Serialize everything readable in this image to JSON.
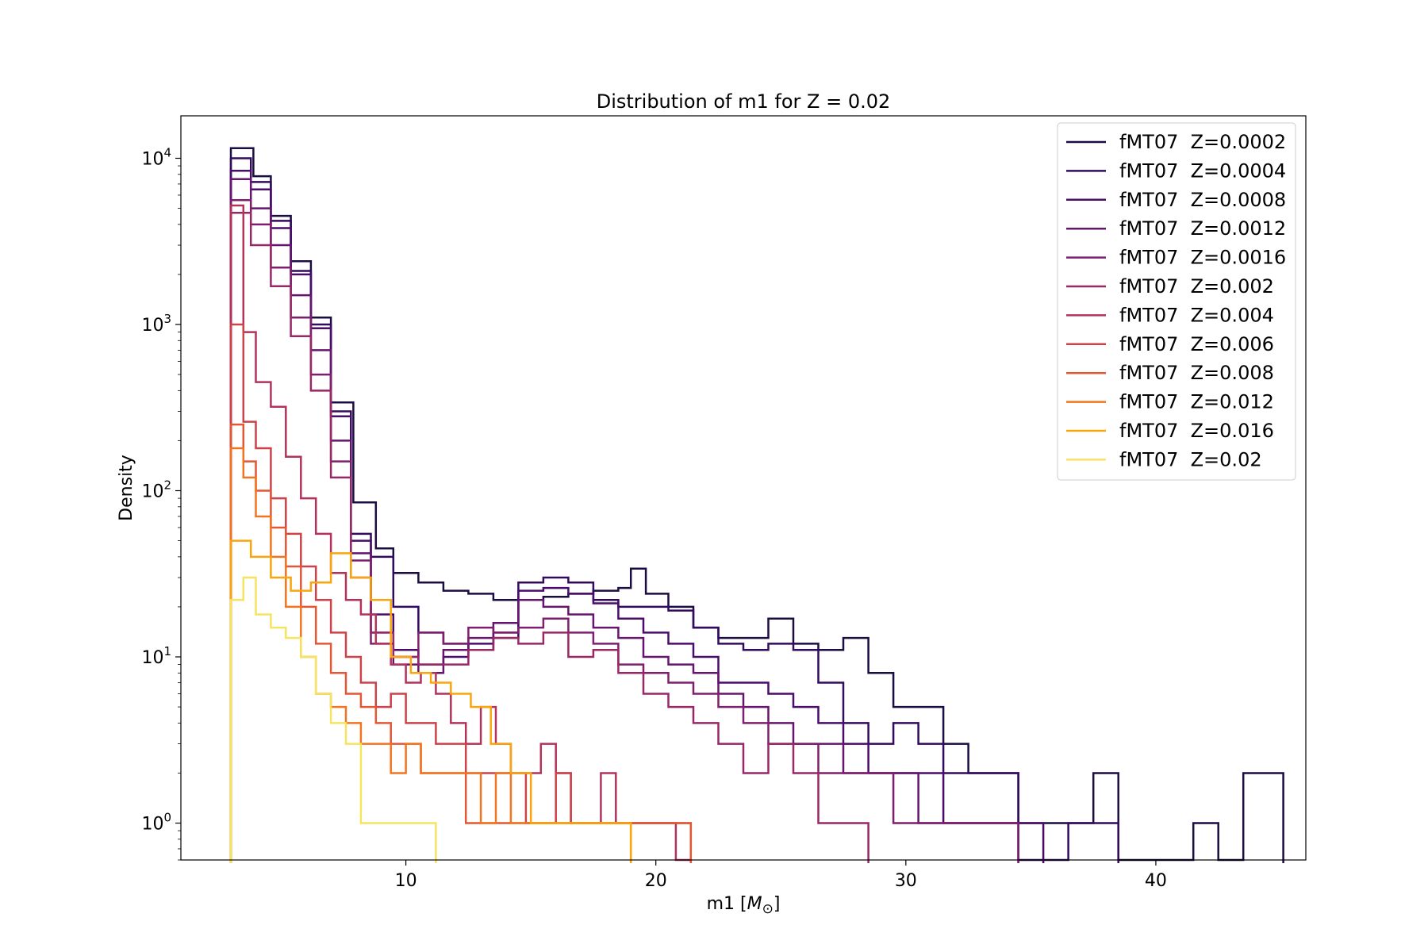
{
  "chart_data": {
    "type": "histogram-step",
    "title": "Distribution of m1 for Z = 0.02",
    "xlabel": "m1 [M⊙]",
    "ylabel": "Density",
    "x_range": [
      1,
      46
    ],
    "y_range": [
      0.6,
      18000
    ],
    "y_scale": "log",
    "x_ticks": [
      10,
      20,
      30,
      40
    ],
    "x_tick_labels": [
      "10",
      "20",
      "30",
      "40"
    ],
    "y_ticks": [
      1,
      10,
      100,
      1000,
      10000
    ],
    "y_tick_labels": [
      {
        "base": "10",
        "exp": "0"
      },
      {
        "base": "10",
        "exp": "1"
      },
      {
        "base": "10",
        "exp": "2"
      },
      {
        "base": "10",
        "exp": "3"
      },
      {
        "base": "10",
        "exp": "4"
      }
    ],
    "grid": false,
    "legend_position": "top-right",
    "series": [
      {
        "name": "fMT07  Z=0.0002",
        "color": "#1b0c41",
        "x": [
          3,
          3.9,
          4.6,
          5.4,
          6.2,
          7,
          7.9,
          8.8,
          9.5,
          10.5,
          11.5,
          12.5,
          13.5,
          14.5,
          15.5,
          16.5,
          17.5,
          18.5,
          19,
          19.6,
          20.5,
          21.5,
          22.5,
          23.5,
          24.5,
          25.5,
          26.5,
          27.5,
          28.5,
          29.5,
          30.5,
          31.5,
          32.5,
          33.5,
          34.5,
          35.5,
          36.5,
          37.5,
          38.5,
          39.5,
          40.5,
          41.5,
          42.5,
          43.5,
          44.3
        ],
        "y": [
          11500,
          7800,
          4500,
          2400,
          1100,
          340,
          85,
          45,
          32,
          28,
          25,
          24,
          22,
          22,
          23,
          24,
          25,
          26,
          34,
          24,
          20,
          15,
          13,
          13,
          17,
          12,
          11,
          13,
          8,
          5,
          5,
          3,
          2,
          2,
          1,
          1,
          1,
          2,
          0,
          0,
          0,
          1,
          0,
          2,
          2
        ]
      },
      {
        "name": "fMT07  Z=0.0004",
        "color": "#320a5e",
        "x": [
          3,
          3.8,
          4.6,
          5.4,
          6.2,
          7,
          7.8,
          8.6,
          9.5,
          10.5,
          11.5,
          12.5,
          13.5,
          14.5,
          15.5,
          16.5,
          17.5,
          18.5,
          19.5,
          20.5,
          21.5,
          22.5,
          23.5,
          24.5,
          25.5,
          26.5,
          27.5,
          28.5,
          29.5,
          30.5,
          31.5,
          32.5,
          33.5,
          34.5,
          35.5,
          36.5,
          37.5
        ],
        "y": [
          10000,
          7200,
          4200,
          2100,
          1000,
          300,
          55,
          40,
          20,
          14,
          12,
          11,
          13,
          28,
          30,
          28,
          22,
          20,
          20,
          19,
          15,
          12,
          11,
          12,
          11,
          7,
          4,
          3,
          4,
          3,
          2,
          2,
          2,
          0.6,
          0.6,
          1,
          1
        ]
      },
      {
        "name": "fMT07  Z=0.0008",
        "color": "#4a0c6b",
        "x": [
          3,
          3.8,
          4.6,
          5.4,
          6.2,
          7,
          7.8,
          8.6,
          9.5,
          10.5,
          11.5,
          12.5,
          13.5,
          14.5,
          15.5,
          16.5,
          17.5,
          18.5,
          19.5,
          20.5,
          21.5,
          22.5,
          23.5,
          24.5,
          25.5,
          26.5,
          27.5,
          28.5,
          29.5,
          30.5,
          31.5,
          32.5,
          33.5,
          34.5
        ],
        "y": [
          8400,
          6500,
          3800,
          2000,
          950,
          280,
          50,
          18,
          11,
          9,
          10,
          12,
          14,
          25,
          26,
          24,
          21,
          17,
          14,
          12,
          10,
          7,
          7,
          6,
          5,
          4,
          3,
          2,
          2,
          2,
          1,
          1,
          1,
          1
        ]
      },
      {
        "name": "fMT07  Z=0.0012",
        "color": "#65156e",
        "x": [
          3,
          3.8,
          4.6,
          5.4,
          6.2,
          7,
          7.8,
          8.6,
          9.5,
          10.5,
          11.5,
          12.5,
          13.5,
          14.5,
          15.5,
          16.5,
          17.5,
          18.5,
          19.5,
          20.5,
          21.5,
          22.5,
          23.5,
          24.5,
          25.5,
          26.5,
          27.5,
          28.5,
          29.5,
          30.5,
          31.5,
          32.5,
          33.5
        ],
        "y": [
          7500,
          5000,
          3000,
          1500,
          700,
          200,
          42,
          14,
          9,
          8,
          11,
          13,
          16,
          22,
          20,
          18,
          15,
          13,
          10,
          9,
          8,
          6,
          5,
          4,
          3,
          3,
          2,
          2,
          2,
          1,
          1,
          1,
          1
        ]
      },
      {
        "name": "fMT07  Z=0.0016",
        "color": "#7e1e6c",
        "x": [
          3,
          3.8,
          4.6,
          5.4,
          6.2,
          7,
          7.8,
          8.6,
          9.5,
          10.5,
          11.5,
          12.5,
          13.5,
          14.5,
          15.5,
          16.5,
          17.5,
          18.5,
          19.5,
          20.5,
          21.5,
          22.5,
          23.5,
          24.5,
          25.5,
          26.5,
          27.5,
          28.5,
          29.5,
          30.5,
          31.5,
          32.5,
          33.5
        ],
        "y": [
          5600,
          4000,
          2200,
          1100,
          500,
          150,
          38,
          12,
          10,
          14,
          12,
          15,
          14,
          15,
          17,
          14,
          12,
          9,
          8,
          7,
          6,
          5,
          4,
          3,
          3,
          2,
          2,
          2,
          1,
          1,
          1,
          1,
          1
        ]
      },
      {
        "name": "fMT07  Z=0.002",
        "color": "#982766",
        "x": [
          3,
          3.8,
          4.6,
          5.4,
          6.2,
          7,
          7.8,
          8.6,
          9.5,
          10.5,
          11.5,
          12.5,
          13.5,
          14.5,
          15.5,
          16.5,
          17.5,
          18.5,
          19.5,
          20.5,
          21.5,
          22.5,
          23.5,
          24.5,
          25.5,
          26.5,
          27.5
        ],
        "y": [
          4700,
          3000,
          1700,
          850,
          400,
          120,
          30,
          14,
          10,
          9,
          9,
          11,
          13,
          12,
          14,
          10,
          11,
          8,
          6,
          5,
          4,
          3,
          2,
          3,
          2,
          1,
          1
        ]
      },
      {
        "name": "fMT07  Z=0.004",
        "color": "#b2325a",
        "x": [
          3,
          3.5,
          4,
          4.6,
          5.2,
          5.8,
          6.4,
          7,
          7.6,
          8.2,
          8.8,
          9.4,
          10,
          10.6,
          11.2,
          11.8,
          12.4,
          13,
          13.6,
          14.2,
          14.8,
          15.4,
          16,
          16.6,
          17.2,
          17.8,
          18.4,
          19,
          19.6,
          20.2,
          20.8
        ],
        "y": [
          5200,
          900,
          450,
          320,
          160,
          90,
          55,
          32,
          22,
          18,
          12,
          9,
          7,
          8,
          6,
          4,
          3,
          5,
          3,
          2,
          2,
          3,
          2,
          1,
          1,
          2,
          1,
          1,
          1,
          1,
          0.6
        ]
      },
      {
        "name": "fMT07  Z=0.006",
        "color": "#cc4248",
        "x": [
          3,
          3.5,
          4,
          4.6,
          5.2,
          5.8,
          6.4,
          7,
          7.6,
          8.2,
          8.8,
          9.4,
          10,
          10.6,
          11.2,
          11.8,
          12.4,
          13,
          13.6,
          14.2,
          14.8,
          15.4,
          16,
          16.6,
          17.2,
          17.8,
          18.4,
          19,
          19.6,
          20.2,
          20.8
        ],
        "y": [
          1000,
          260,
          180,
          90,
          55,
          35,
          22,
          14,
          10,
          7,
          5,
          6,
          4,
          4,
          3,
          3,
          2,
          2,
          2,
          2,
          1,
          1,
          2,
          1,
          1,
          1,
          1,
          1,
          1,
          1,
          1
        ]
      },
      {
        "name": "fMT07  Z=0.008",
        "color": "#e25734",
        "x": [
          3,
          3.5,
          4,
          4.6,
          5.2,
          5.8,
          6.4,
          7,
          7.6,
          8.2,
          8.8,
          9.4,
          10,
          10.6,
          11.2,
          11.8,
          12.4,
          13,
          13.6,
          14.2,
          14.8,
          15.4,
          16,
          16.6,
          17.2,
          17.8,
          18.4,
          19,
          19.6,
          20.2,
          20.8
        ],
        "y": [
          250,
          150,
          100,
          60,
          35,
          20,
          12,
          8,
          6,
          5,
          4,
          3,
          3,
          2,
          2,
          2,
          1,
          1,
          1,
          1,
          1,
          1,
          1,
          1,
          1,
          1,
          1,
          1,
          1,
          1,
          1
        ]
      },
      {
        "name": "fMT07  Z=0.012",
        "color": "#f2741e",
        "x": [
          3,
          3.5,
          4,
          4.6,
          5.2,
          5.8,
          6.4,
          7,
          7.6,
          8.2,
          8.8,
          9.4,
          10,
          10.6,
          11.2,
          11.8,
          12.4,
          13,
          13.6,
          14.2,
          14.8,
          15.4,
          16,
          16.6,
          17.2,
          17.8,
          18.4
        ],
        "y": [
          180,
          120,
          70,
          40,
          20,
          10,
          6,
          5,
          4,
          3,
          3,
          2,
          3,
          2,
          2,
          2,
          2,
          1,
          2,
          1,
          1,
          1,
          1,
          1,
          1,
          1,
          1
        ]
      },
      {
        "name": "fMT07  Z=0.016",
        "color": "#faa50c",
        "x": [
          3,
          3.8,
          4.6,
          5.4,
          6.2,
          7,
          7.8,
          8.6,
          9.4,
          10.2,
          11,
          11.8,
          12.6,
          13.4,
          14.2,
          15,
          15.8,
          16.6,
          17.4,
          18.2
        ],
        "y": [
          50,
          40,
          30,
          25,
          28,
          42,
          30,
          22,
          10,
          8,
          7,
          6,
          5,
          3,
          2,
          1,
          1,
          1,
          1,
          1
        ]
      },
      {
        "name": "fMT07  Z=0.02",
        "color": "#f6e35f",
        "x": [
          3,
          3.5,
          4,
          4.6,
          5.2,
          5.8,
          6.4,
          7,
          7.6,
          8.2,
          8.8,
          9.4,
          10,
          10.6
        ],
        "y": [
          22,
          30,
          18,
          15,
          13,
          10,
          6,
          4,
          3,
          1,
          1,
          1,
          1,
          1
        ]
      }
    ]
  }
}
